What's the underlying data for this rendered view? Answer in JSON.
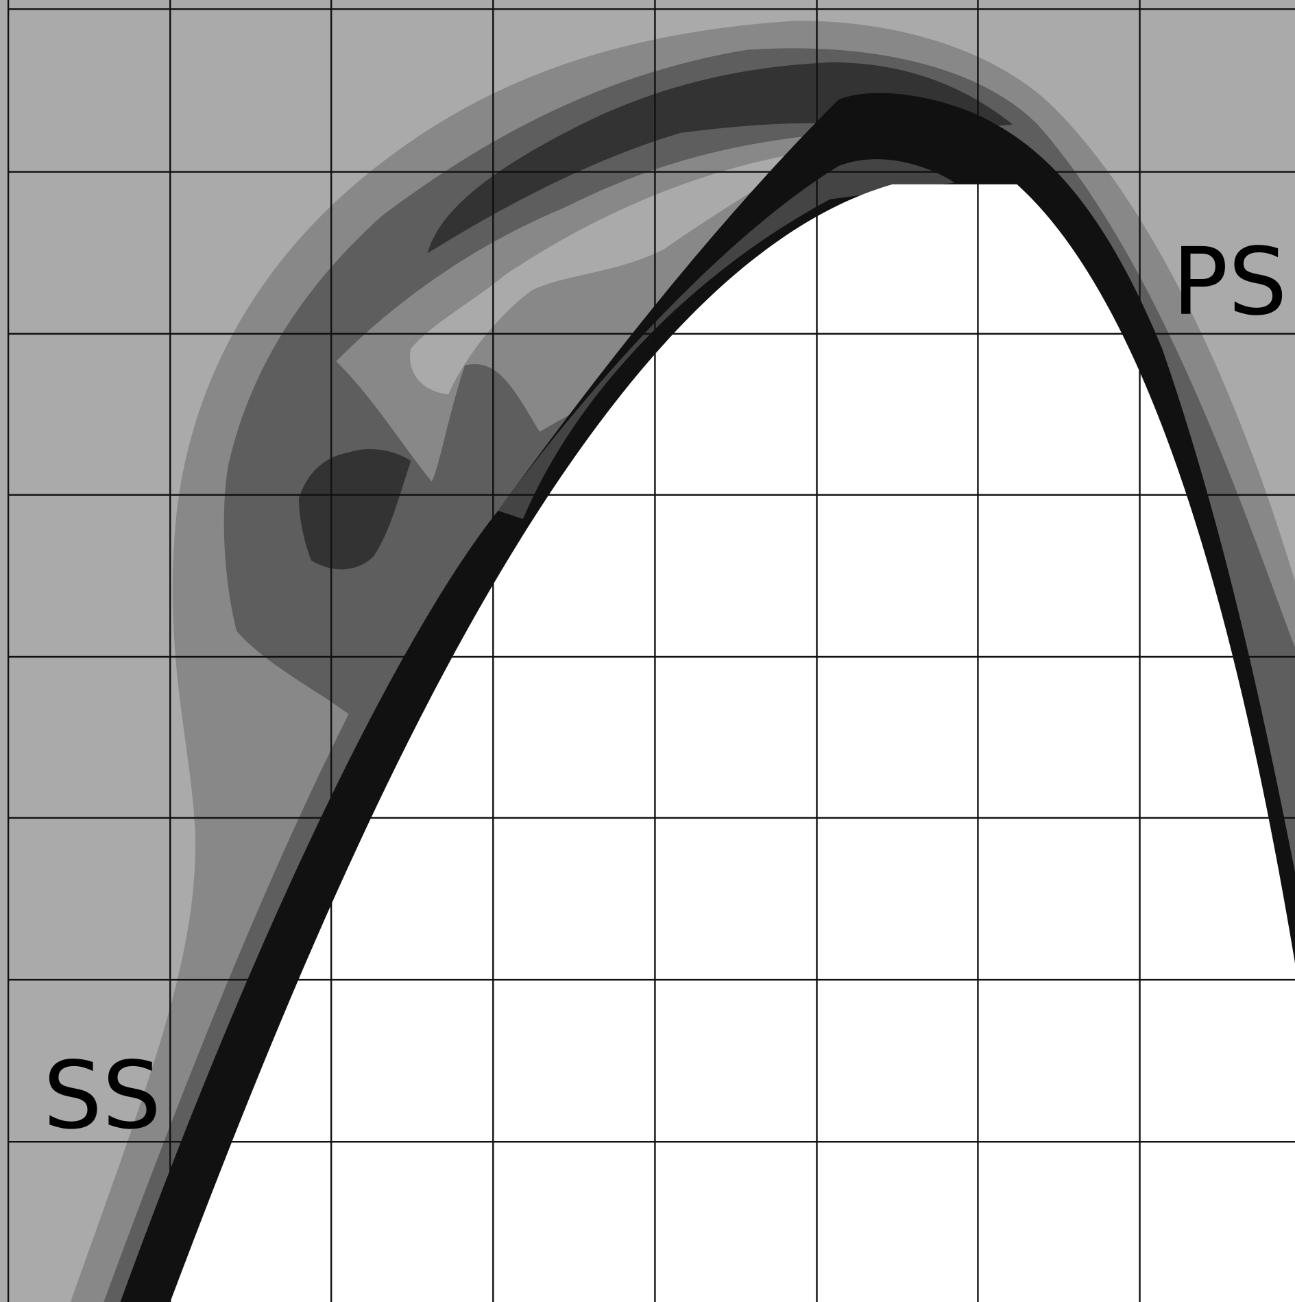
{
  "labels": {
    "suction_side": "SS",
    "pressure_side": "PS"
  }
}
